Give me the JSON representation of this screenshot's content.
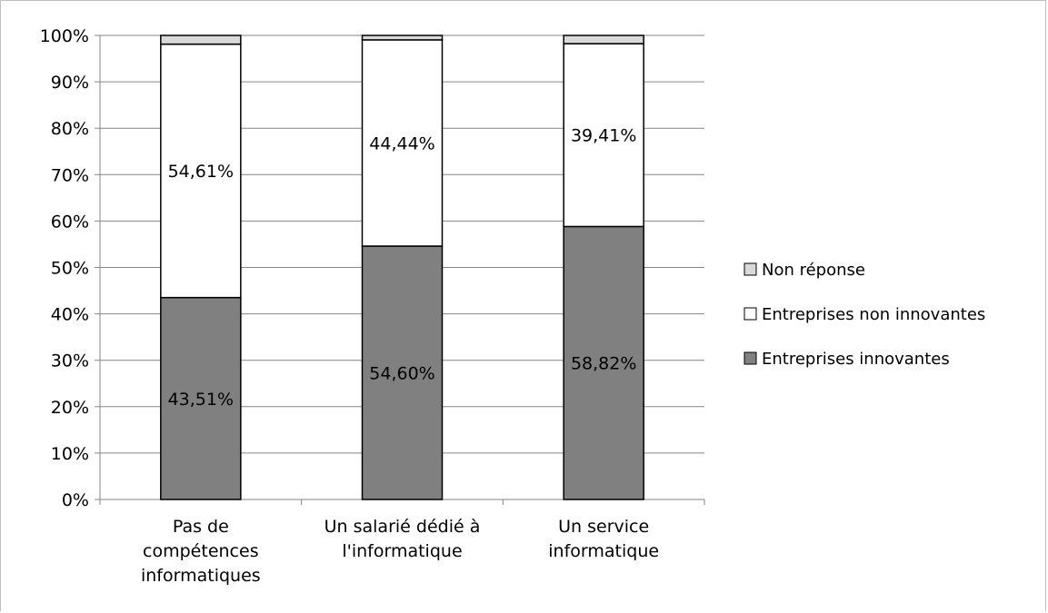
{
  "chart_data": {
    "type": "bar",
    "stacked": true,
    "percent": true,
    "categories": [
      [
        "Pas de",
        "compétences",
        "informatiques"
      ],
      [
        "Un salarié dédié à",
        "l'informatique"
      ],
      [
        "Un service",
        "informatique"
      ]
    ],
    "series": [
      {
        "name": "Entreprises innovantes",
        "values": [
          43.51,
          54.6,
          58.82
        ],
        "labels": [
          "43,51%",
          "54,60%",
          "58,82%"
        ],
        "color": "#808080"
      },
      {
        "name": "Entreprises non innovantes",
        "values": [
          54.61,
          44.44,
          39.41
        ],
        "labels": [
          "54,61%",
          "44,44%",
          "39,41%"
        ],
        "color": "#ffffff"
      },
      {
        "name": "Non réponse",
        "values": [
          1.88,
          0.96,
          1.77
        ],
        "labels": [
          "",
          "",
          ""
        ],
        "color": "#d9d9d9"
      }
    ],
    "ylim": [
      0,
      100
    ],
    "yticks": [
      0,
      10,
      20,
      30,
      40,
      50,
      60,
      70,
      80,
      90,
      100
    ],
    "ytick_labels": [
      "0%",
      "10%",
      "20%",
      "30%",
      "40%",
      "50%",
      "60%",
      "70%",
      "80%",
      "90%",
      "100%"
    ],
    "grid": true,
    "legend_position": "right",
    "legend_order": [
      "Non réponse",
      "Entreprises non innovantes",
      "Entreprises innovantes"
    ],
    "title": "",
    "xlabel": "",
    "ylabel": ""
  }
}
